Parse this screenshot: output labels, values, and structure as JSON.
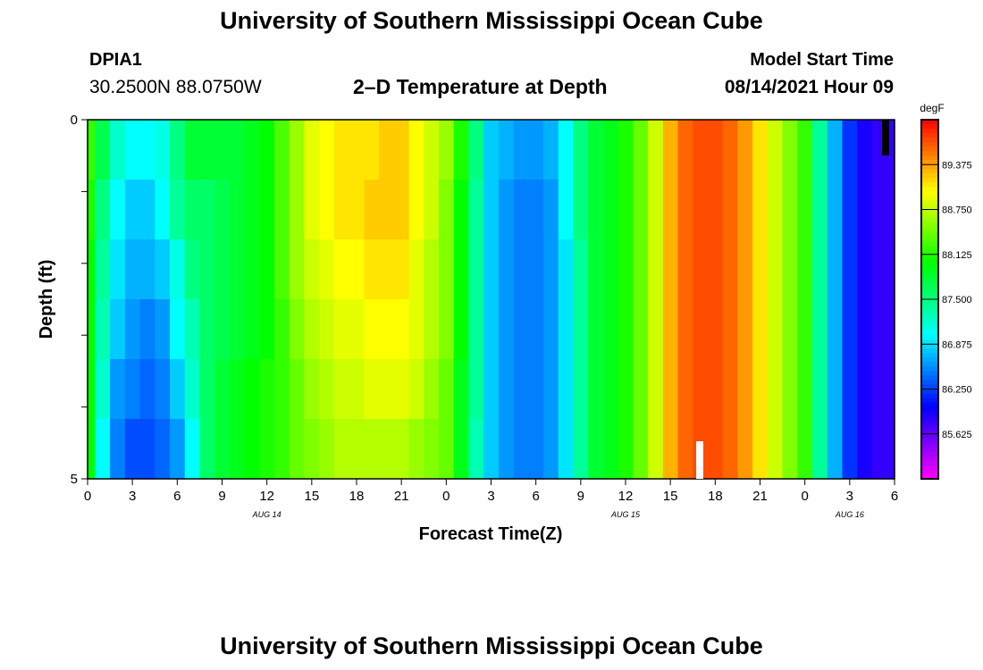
{
  "header": {
    "title": "University of Southern Mississippi Ocean Cube",
    "station_id": "DPIA1",
    "coordinates": "30.2500N  88.0750W",
    "start_label": "Model Start Time",
    "start_value": "08/14/2021 Hour 09"
  },
  "footer": {
    "title": "University of Southern Mississippi Ocean Cube"
  },
  "chart_data": {
    "type": "heatmap",
    "title": "2–D Temperature at Depth",
    "xlabel": "Forecast Time(Z)",
    "ylabel": "Depth (ft)",
    "x_ticks": [
      "0",
      "3",
      "6",
      "9",
      "12",
      "15",
      "18",
      "21",
      "0",
      "3",
      "6",
      "9",
      "12",
      "15",
      "18",
      "21",
      "0",
      "3",
      "6"
    ],
    "date_labels": [
      {
        "label": "AUG 14",
        "hour_index": 12
      },
      {
        "label": "AUG 15",
        "hour_index": 36
      },
      {
        "label": "AUG 16",
        "hour_index": 51
      }
    ],
    "y_ticks": [
      "0",
      "5"
    ],
    "ylim": [
      0,
      5
    ],
    "depth_levels_ft": [
      0,
      1,
      2,
      3,
      4,
      5
    ],
    "colorbar": {
      "unit": "degF",
      "min": 85.0,
      "max": 90.0,
      "tick_labels": [
        "89.375",
        "88.750",
        "88.125",
        "87.500",
        "86.875",
        "86.250",
        "85.625"
      ],
      "tick_values": [
        89.375,
        88.75,
        88.125,
        87.5,
        86.875,
        86.25,
        85.625
      ]
    },
    "time_hours": [
      0,
      1,
      2,
      3,
      4,
      5,
      6,
      7,
      8,
      9,
      10,
      11,
      12,
      13,
      14,
      15,
      16,
      17,
      18,
      19,
      20,
      21,
      22,
      23,
      24,
      25,
      26,
      27,
      28,
      29,
      30,
      31,
      32,
      33,
      34,
      35,
      36,
      37,
      38,
      39,
      40,
      41,
      42,
      43,
      44,
      45,
      46,
      47,
      48,
      49,
      50,
      51,
      52,
      53,
      54
    ],
    "series": [
      {
        "depth_ft": 0,
        "values": [
          88.2,
          87.7,
          87.2,
          87.0,
          87.0,
          87.1,
          87.5,
          87.8,
          87.8,
          87.8,
          87.8,
          87.9,
          88.0,
          88.3,
          88.6,
          88.9,
          89.0,
          89.1,
          89.1,
          89.1,
          89.2,
          89.2,
          89.0,
          88.8,
          88.6,
          88.1,
          87.5,
          86.8,
          86.7,
          86.6,
          86.6,
          86.7,
          87.0,
          87.5,
          87.8,
          87.9,
          88.1,
          88.4,
          88.8,
          89.3,
          89.6,
          89.7,
          89.7,
          89.6,
          89.4,
          89.1,
          88.8,
          88.5,
          88.2,
          87.4,
          86.7,
          86.2,
          85.9,
          85.8,
          85.8
        ]
      },
      {
        "depth_ft": 1,
        "values": [
          88.1,
          87.5,
          87.0,
          86.8,
          86.8,
          87.0,
          87.4,
          87.6,
          87.6,
          87.7,
          87.8,
          87.9,
          88.0,
          88.3,
          88.6,
          88.9,
          89.0,
          89.1,
          89.1,
          89.2,
          89.2,
          89.2,
          89.0,
          88.8,
          88.5,
          88.0,
          87.4,
          86.8,
          86.6,
          86.5,
          86.5,
          86.6,
          87.0,
          87.5,
          87.8,
          87.9,
          88.1,
          88.4,
          88.8,
          89.3,
          89.6,
          89.7,
          89.7,
          89.6,
          89.4,
          89.1,
          88.8,
          88.5,
          88.2,
          87.4,
          86.7,
          86.2,
          85.9,
          85.8,
          85.8
        ]
      },
      {
        "depth_ft": 2,
        "values": [
          88.0,
          87.4,
          86.9,
          86.7,
          86.7,
          86.8,
          87.1,
          87.5,
          87.6,
          87.7,
          87.8,
          87.9,
          88.0,
          88.3,
          88.6,
          88.8,
          88.9,
          89.0,
          89.0,
          89.1,
          89.1,
          89.1,
          88.9,
          88.7,
          88.5,
          88.0,
          87.4,
          86.8,
          86.6,
          86.5,
          86.5,
          86.6,
          86.9,
          87.4,
          87.8,
          87.9,
          88.1,
          88.4,
          88.8,
          89.3,
          89.6,
          89.7,
          89.7,
          89.6,
          89.4,
          89.1,
          88.8,
          88.5,
          88.2,
          87.4,
          86.7,
          86.2,
          85.9,
          85.8,
          85.8
        ]
      },
      {
        "depth_ft": 3,
        "values": [
          88.0,
          87.3,
          86.8,
          86.6,
          86.5,
          86.6,
          87.0,
          87.3,
          87.6,
          87.7,
          87.8,
          87.9,
          88.0,
          88.2,
          88.5,
          88.7,
          88.8,
          88.9,
          88.9,
          89.0,
          89.0,
          89.0,
          88.9,
          88.7,
          88.5,
          88.0,
          87.4,
          86.8,
          86.6,
          86.5,
          86.5,
          86.6,
          86.9,
          87.4,
          87.8,
          87.9,
          88.1,
          88.4,
          88.8,
          89.3,
          89.6,
          89.7,
          89.7,
          89.6,
          89.4,
          89.1,
          88.8,
          88.5,
          88.2,
          87.4,
          86.7,
          86.2,
          85.9,
          85.8,
          85.8
        ]
      },
      {
        "depth_ft": 4,
        "values": [
          88.0,
          87.2,
          86.6,
          86.5,
          86.4,
          86.5,
          86.8,
          87.2,
          87.6,
          87.8,
          87.9,
          88.0,
          88.1,
          88.2,
          88.4,
          88.6,
          88.7,
          88.8,
          88.8,
          88.9,
          88.9,
          88.9,
          88.8,
          88.6,
          88.4,
          87.9,
          87.4,
          86.8,
          86.6,
          86.5,
          86.5,
          86.6,
          86.9,
          87.4,
          87.8,
          87.9,
          88.1,
          88.4,
          88.8,
          89.3,
          89.6,
          89.7,
          89.7,
          89.6,
          89.4,
          89.1,
          88.8,
          88.5,
          88.2,
          87.4,
          86.7,
          86.2,
          85.9,
          85.8,
          85.8
        ]
      },
      {
        "depth_ft": 5,
        "values": [
          88.0,
          87.0,
          86.5,
          86.3,
          86.3,
          86.4,
          86.6,
          87.0,
          87.6,
          87.8,
          87.9,
          88.0,
          88.1,
          88.2,
          88.4,
          88.5,
          88.6,
          88.7,
          88.7,
          88.7,
          88.7,
          88.7,
          88.6,
          88.5,
          88.4,
          87.9,
          87.3,
          86.8,
          86.6,
          86.5,
          86.5,
          86.6,
          86.9,
          87.4,
          87.8,
          87.9,
          88.1,
          88.4,
          88.8,
          89.3,
          89.6,
          89.7,
          89.7,
          89.6,
          89.4,
          89.1,
          88.8,
          88.5,
          88.2,
          87.4,
          86.7,
          86.2,
          85.9,
          85.8,
          85.8
        ]
      }
    ],
    "grid": false,
    "legend": "right"
  }
}
